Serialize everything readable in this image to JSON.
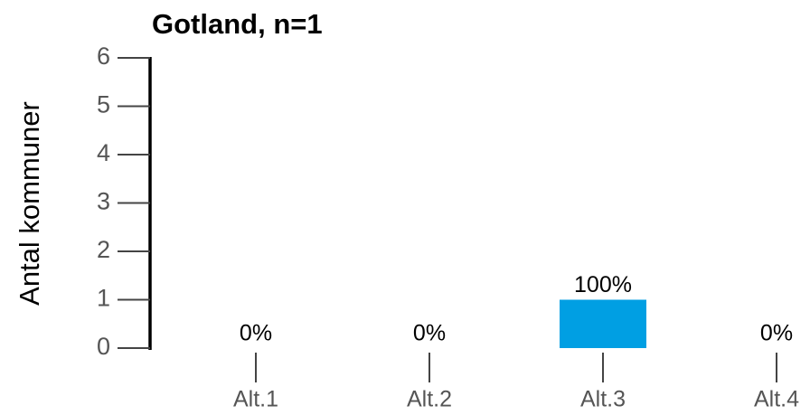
{
  "chart_data": {
    "type": "bar",
    "title": "Gotland, n=1",
    "y_label": "Antal kommuner",
    "categories": [
      "Alt.1",
      "Alt.2",
      "Alt.3",
      "Alt.4"
    ],
    "values": [
      0,
      0,
      1,
      0
    ],
    "value_labels": [
      "0%",
      "0%",
      "100%",
      "0%"
    ],
    "color": "#009fe3",
    "ylim": [
      0,
      6
    ],
    "yticks": [
      0,
      1,
      2,
      3,
      4,
      5,
      6
    ],
    "grid": false
  }
}
